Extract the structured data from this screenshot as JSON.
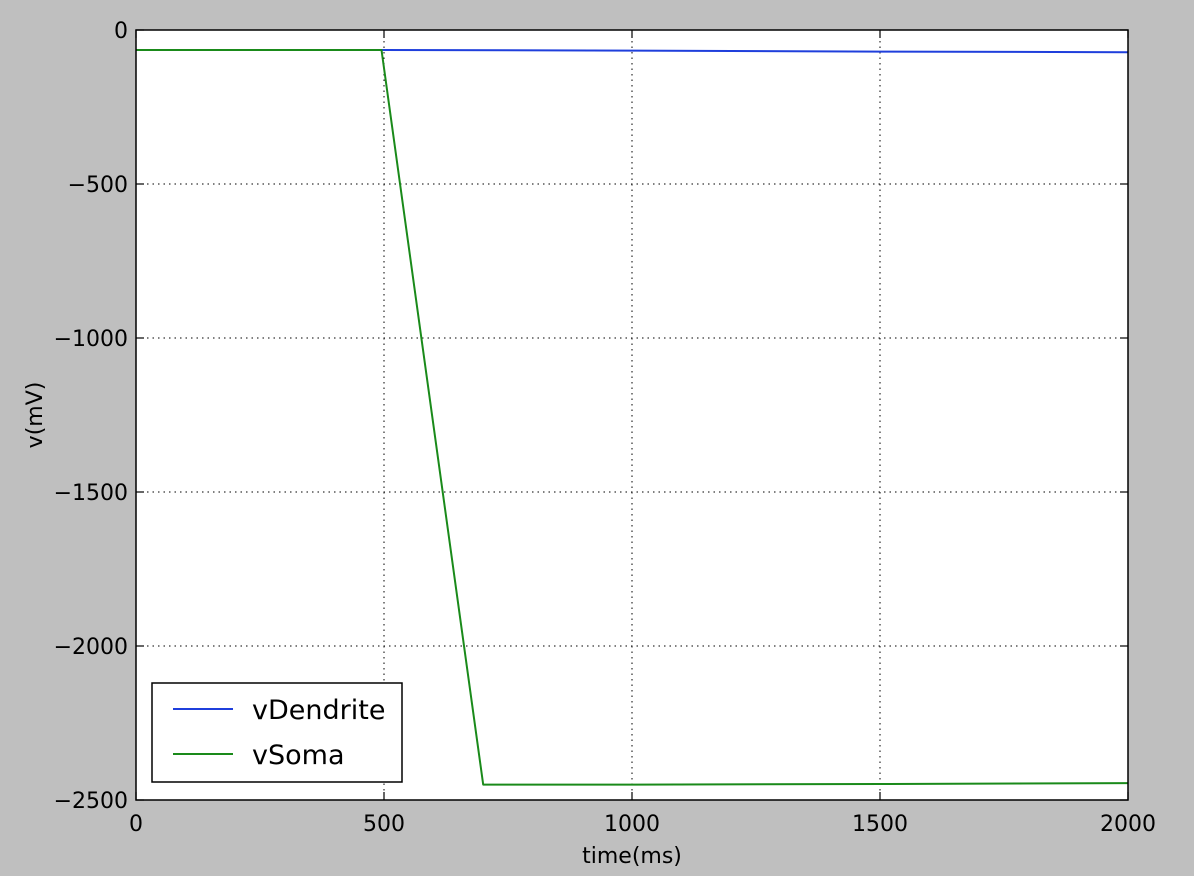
{
  "chart_data": {
    "type": "line",
    "title": "",
    "xlabel": "time(ms)",
    "ylabel": "v(mV)",
    "xlim": [
      0,
      2000
    ],
    "ylim": [
      -2500,
      0
    ],
    "x_ticks": [
      0,
      500,
      1000,
      1500,
      2000
    ],
    "y_ticks": [
      0,
      -500,
      -1000,
      -1500,
      -2000,
      -2500
    ],
    "x_tick_labels": [
      "0",
      "500",
      "1000",
      "1500",
      "2000"
    ],
    "y_tick_labels": [
      "0",
      "−500",
      "−1000",
      "−1500",
      "−2000",
      "−2500"
    ],
    "grid": true,
    "legend_position": "lower-left",
    "series": [
      {
        "name": "vDendrite",
        "color": "#1f3fdc",
        "x": [
          0,
          500,
          1000,
          1500,
          2000
        ],
        "y": [
          -65,
          -65,
          -67,
          -70,
          -72
        ]
      },
      {
        "name": "vSoma",
        "color": "#1a8a1a",
        "x": [
          0,
          495,
          700,
          1000,
          1500,
          2000
        ],
        "y": [
          -65,
          -65,
          -2450,
          -2450,
          -2448,
          -2445
        ]
      }
    ]
  }
}
